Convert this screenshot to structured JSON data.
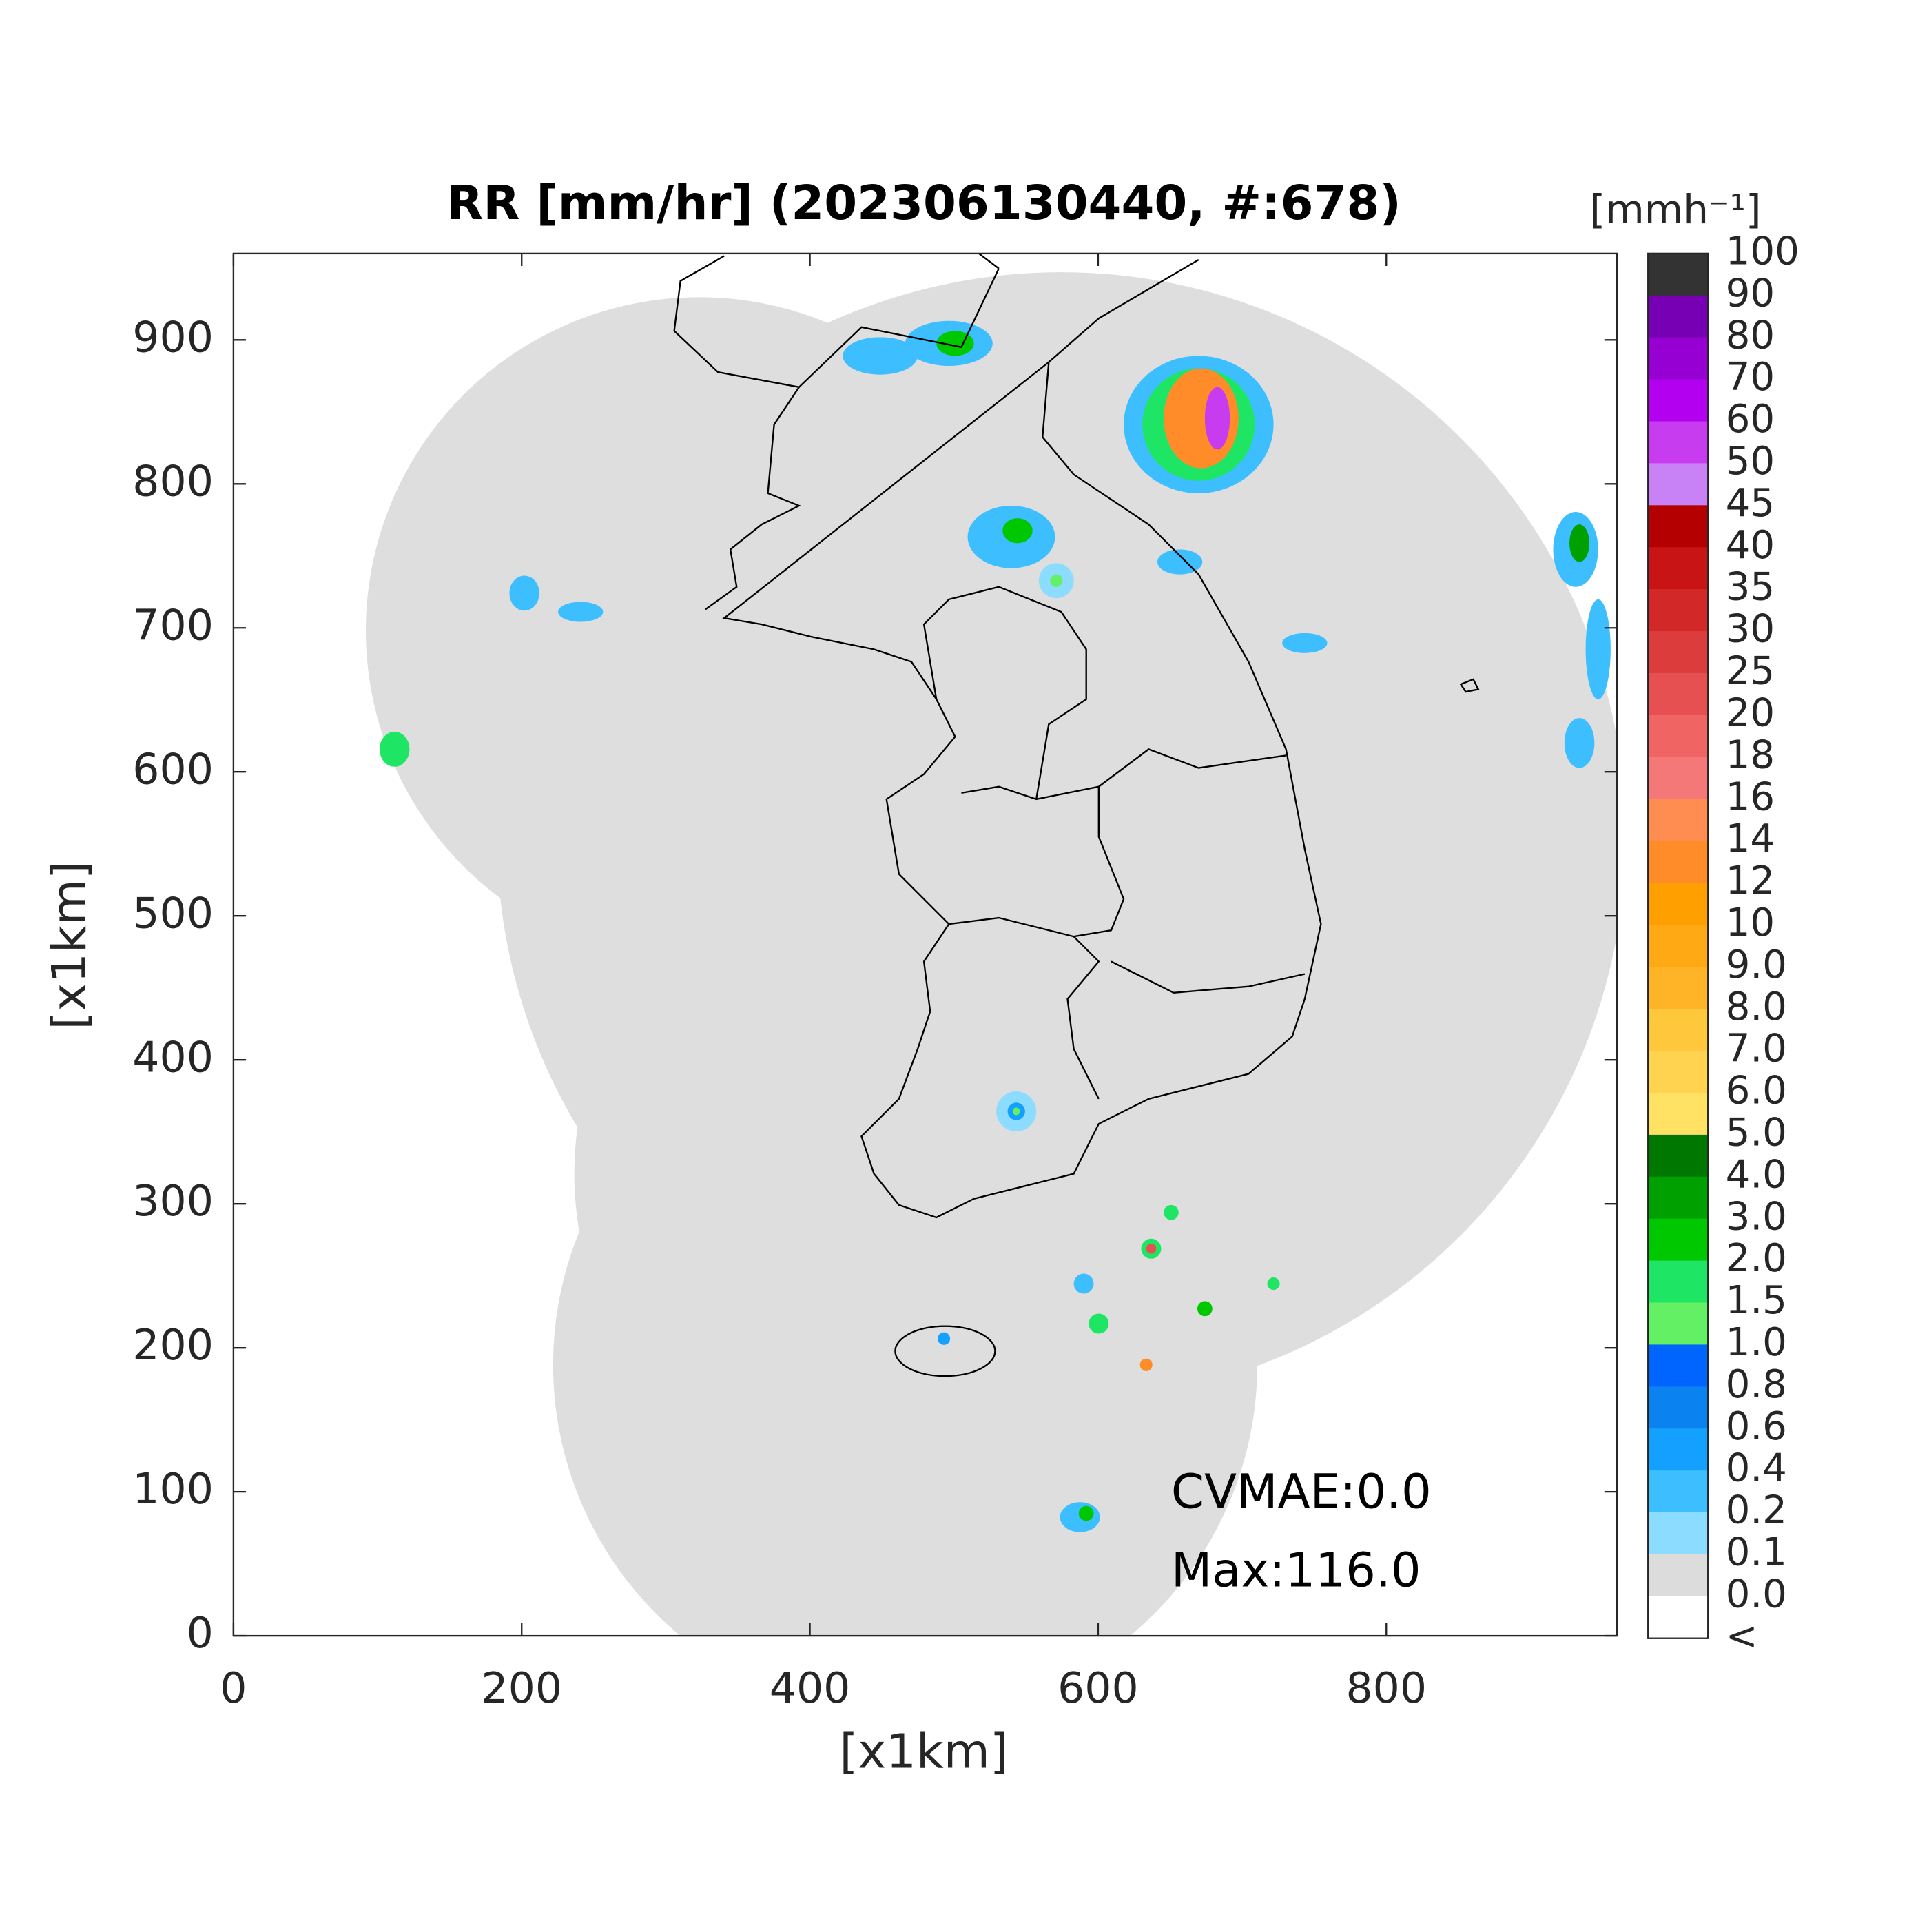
{
  "map": {
    "title": "RR [mm/hr] (202306130440, #:678)",
    "xlabel": "[x1km]",
    "ylabel": "[x1km]",
    "xlim": [
      0,
      960
    ],
    "ylim": [
      0,
      960
    ],
    "xticks": [
      0,
      200,
      400,
      600,
      800
    ],
    "yticks": [
      0,
      100,
      200,
      300,
      400,
      500,
      600,
      700,
      800,
      900
    ],
    "annotations": [
      "CVMAE:0.0",
      "Max:116.0"
    ],
    "colorbar": {
      "unit": "[mmh⁻¹]",
      "labels": [
        "100",
        "90",
        "80",
        "70",
        "60",
        "50",
        "45",
        "40",
        "35",
        "30",
        "25",
        "20",
        "18",
        "16",
        "14",
        "12",
        "10",
        "9.0",
        "8.0",
        "7.0",
        "6.0",
        "5.0",
        "4.0",
        "3.0",
        "2.0",
        "1.5",
        "1.0",
        "0.8",
        "0.6",
        "0.4",
        "0.2",
        "0.1",
        "0.0",
        "<"
      ],
      "colors": [
        "#333333",
        "#7800b4",
        "#9600d2",
        "#b400f0",
        "#c83cf0",
        "#c882f5",
        "#b40000",
        "#c81414",
        "#d22828",
        "#dc3c3c",
        "#e65050",
        "#f06464",
        "#f57878",
        "#ff8c50",
        "#ff8c28",
        "#ffa000",
        "#ffaa14",
        "#ffb428",
        "#ffc83c",
        "#ffd250",
        "#ffe164",
        "#007800",
        "#00a000",
        "#00c800",
        "#1ee664",
        "#64f064",
        "#0064ff",
        "#0a82f0",
        "#14a0ff",
        "#3cbeff",
        "#8cdcff",
        "#dcdcdc",
        "#ffffff"
      ]
    }
  }
}
